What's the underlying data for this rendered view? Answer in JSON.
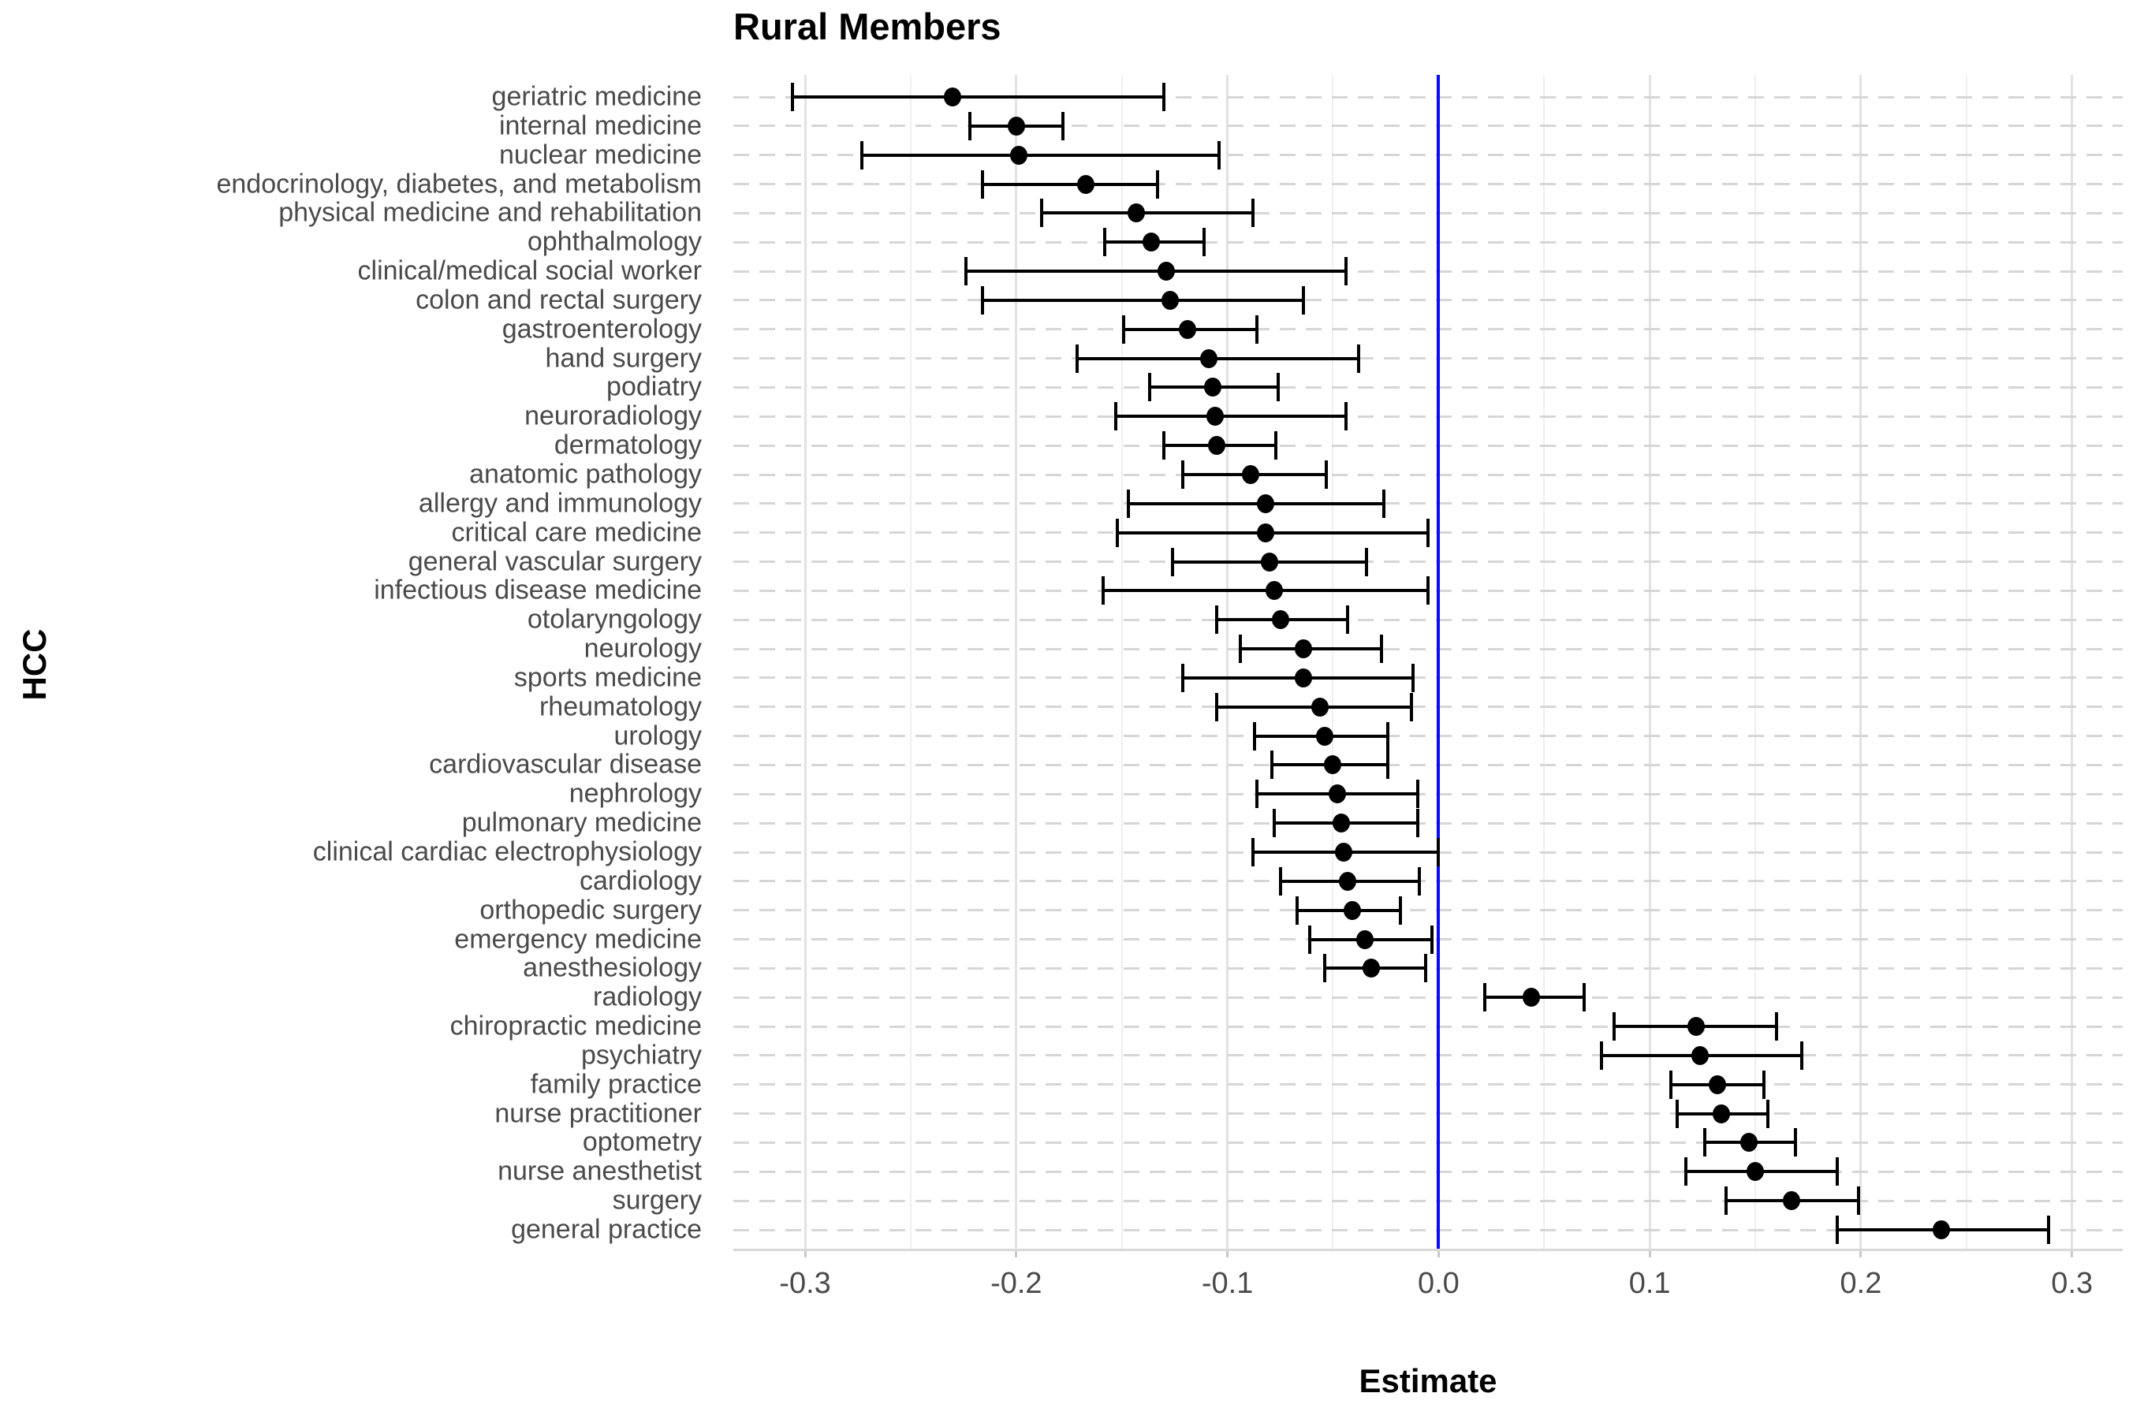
{
  "chart_data": {
    "type": "dot-whisker",
    "title": "Rural Members",
    "xlabel": "Estimate",
    "ylabel": "HCC",
    "legend": "none",
    "grid": "vertical major+minor gridlines; dashed horizontal line per row",
    "xlim": [
      -0.334,
      0.324
    ],
    "xticks": [
      -0.3,
      -0.2,
      -0.1,
      0.0,
      0.1,
      0.2,
      0.3
    ],
    "xtick_labels": [
      "-0.3",
      "-0.2",
      "-0.1",
      "0.0",
      "0.1",
      "0.2",
      "0.3"
    ],
    "minor_xticks": [
      -0.25,
      -0.15,
      -0.05,
      0.05,
      0.15,
      0.25
    ],
    "reference_line": {
      "x": 0.0,
      "color": "#0b0bf5"
    },
    "point_color": "#000000",
    "series": [
      {
        "label": "geriatric medicine",
        "est": -0.23,
        "lo": -0.306,
        "hi": -0.13
      },
      {
        "label": "internal medicine",
        "est": -0.2,
        "lo": -0.222,
        "hi": -0.178
      },
      {
        "label": "nuclear medicine",
        "est": -0.199,
        "lo": -0.273,
        "hi": -0.104
      },
      {
        "label": "endocrinology, diabetes, and metabolism",
        "est": -0.167,
        "lo": -0.216,
        "hi": -0.133
      },
      {
        "label": "physical medicine and rehabilitation",
        "est": -0.143,
        "lo": -0.188,
        "hi": -0.088
      },
      {
        "label": "ophthalmology",
        "est": -0.136,
        "lo": -0.158,
        "hi": -0.111
      },
      {
        "label": "clinical/medical social worker",
        "est": -0.129,
        "lo": -0.224,
        "hi": -0.044
      },
      {
        "label": "colon and rectal surgery",
        "est": -0.127,
        "lo": -0.216,
        "hi": -0.064
      },
      {
        "label": "gastroenterology",
        "est": -0.119,
        "lo": -0.149,
        "hi": -0.086
      },
      {
        "label": "hand surgery",
        "est": -0.109,
        "lo": -0.171,
        "hi": -0.038
      },
      {
        "label": "podiatry",
        "est": -0.107,
        "lo": -0.137,
        "hi": -0.076
      },
      {
        "label": "neuroradiology",
        "est": -0.106,
        "lo": -0.153,
        "hi": -0.044
      },
      {
        "label": "dermatology",
        "est": -0.105,
        "lo": -0.13,
        "hi": -0.077
      },
      {
        "label": "anatomic pathology",
        "est": -0.089,
        "lo": -0.121,
        "hi": -0.053
      },
      {
        "label": "allergy and immunology",
        "est": -0.082,
        "lo": -0.147,
        "hi": -0.026
      },
      {
        "label": "critical care medicine",
        "est": -0.082,
        "lo": -0.152,
        "hi": -0.005
      },
      {
        "label": "general vascular surgery",
        "est": -0.08,
        "lo": -0.126,
        "hi": -0.034
      },
      {
        "label": "infectious disease medicine",
        "est": -0.078,
        "lo": -0.159,
        "hi": -0.005
      },
      {
        "label": "otolaryngology",
        "est": -0.075,
        "lo": -0.105,
        "hi": -0.043
      },
      {
        "label": "neurology",
        "est": -0.064,
        "lo": -0.094,
        "hi": -0.027
      },
      {
        "label": "sports medicine",
        "est": -0.064,
        "lo": -0.121,
        "hi": -0.012
      },
      {
        "label": "rheumatology",
        "est": -0.056,
        "lo": -0.105,
        "hi": -0.013
      },
      {
        "label": "urology",
        "est": -0.054,
        "lo": -0.087,
        "hi": -0.024
      },
      {
        "label": "cardiovascular disease",
        "est": -0.05,
        "lo": -0.079,
        "hi": -0.024
      },
      {
        "label": "nephrology",
        "est": -0.048,
        "lo": -0.086,
        "hi": -0.01
      },
      {
        "label": "pulmonary medicine",
        "est": -0.046,
        "lo": -0.078,
        "hi": -0.01
      },
      {
        "label": "clinical cardiac electrophysiology",
        "est": -0.045,
        "lo": -0.088,
        "hi": 0.0
      },
      {
        "label": "cardiology",
        "est": -0.043,
        "lo": -0.075,
        "hi": -0.009
      },
      {
        "label": "orthopedic surgery",
        "est": -0.041,
        "lo": -0.067,
        "hi": -0.018
      },
      {
        "label": "emergency medicine",
        "est": -0.035,
        "lo": -0.061,
        "hi": -0.003
      },
      {
        "label": "anesthesiology",
        "est": -0.032,
        "lo": -0.054,
        "hi": -0.006
      },
      {
        "label": "radiology",
        "est": 0.044,
        "lo": 0.022,
        "hi": 0.069
      },
      {
        "label": "chiropractic medicine",
        "est": 0.122,
        "lo": 0.083,
        "hi": 0.16
      },
      {
        "label": "psychiatry",
        "est": 0.124,
        "lo": 0.077,
        "hi": 0.172
      },
      {
        "label": "family practice",
        "est": 0.132,
        "lo": 0.11,
        "hi": 0.154
      },
      {
        "label": "nurse practitioner",
        "est": 0.134,
        "lo": 0.113,
        "hi": 0.156
      },
      {
        "label": "optometry",
        "est": 0.147,
        "lo": 0.126,
        "hi": 0.169
      },
      {
        "label": "nurse anesthetist",
        "est": 0.15,
        "lo": 0.117,
        "hi": 0.189
      },
      {
        "label": "surgery",
        "est": 0.167,
        "lo": 0.136,
        "hi": 0.199
      },
      {
        "label": "general practice",
        "est": 0.238,
        "lo": 0.189,
        "hi": 0.289
      }
    ]
  }
}
